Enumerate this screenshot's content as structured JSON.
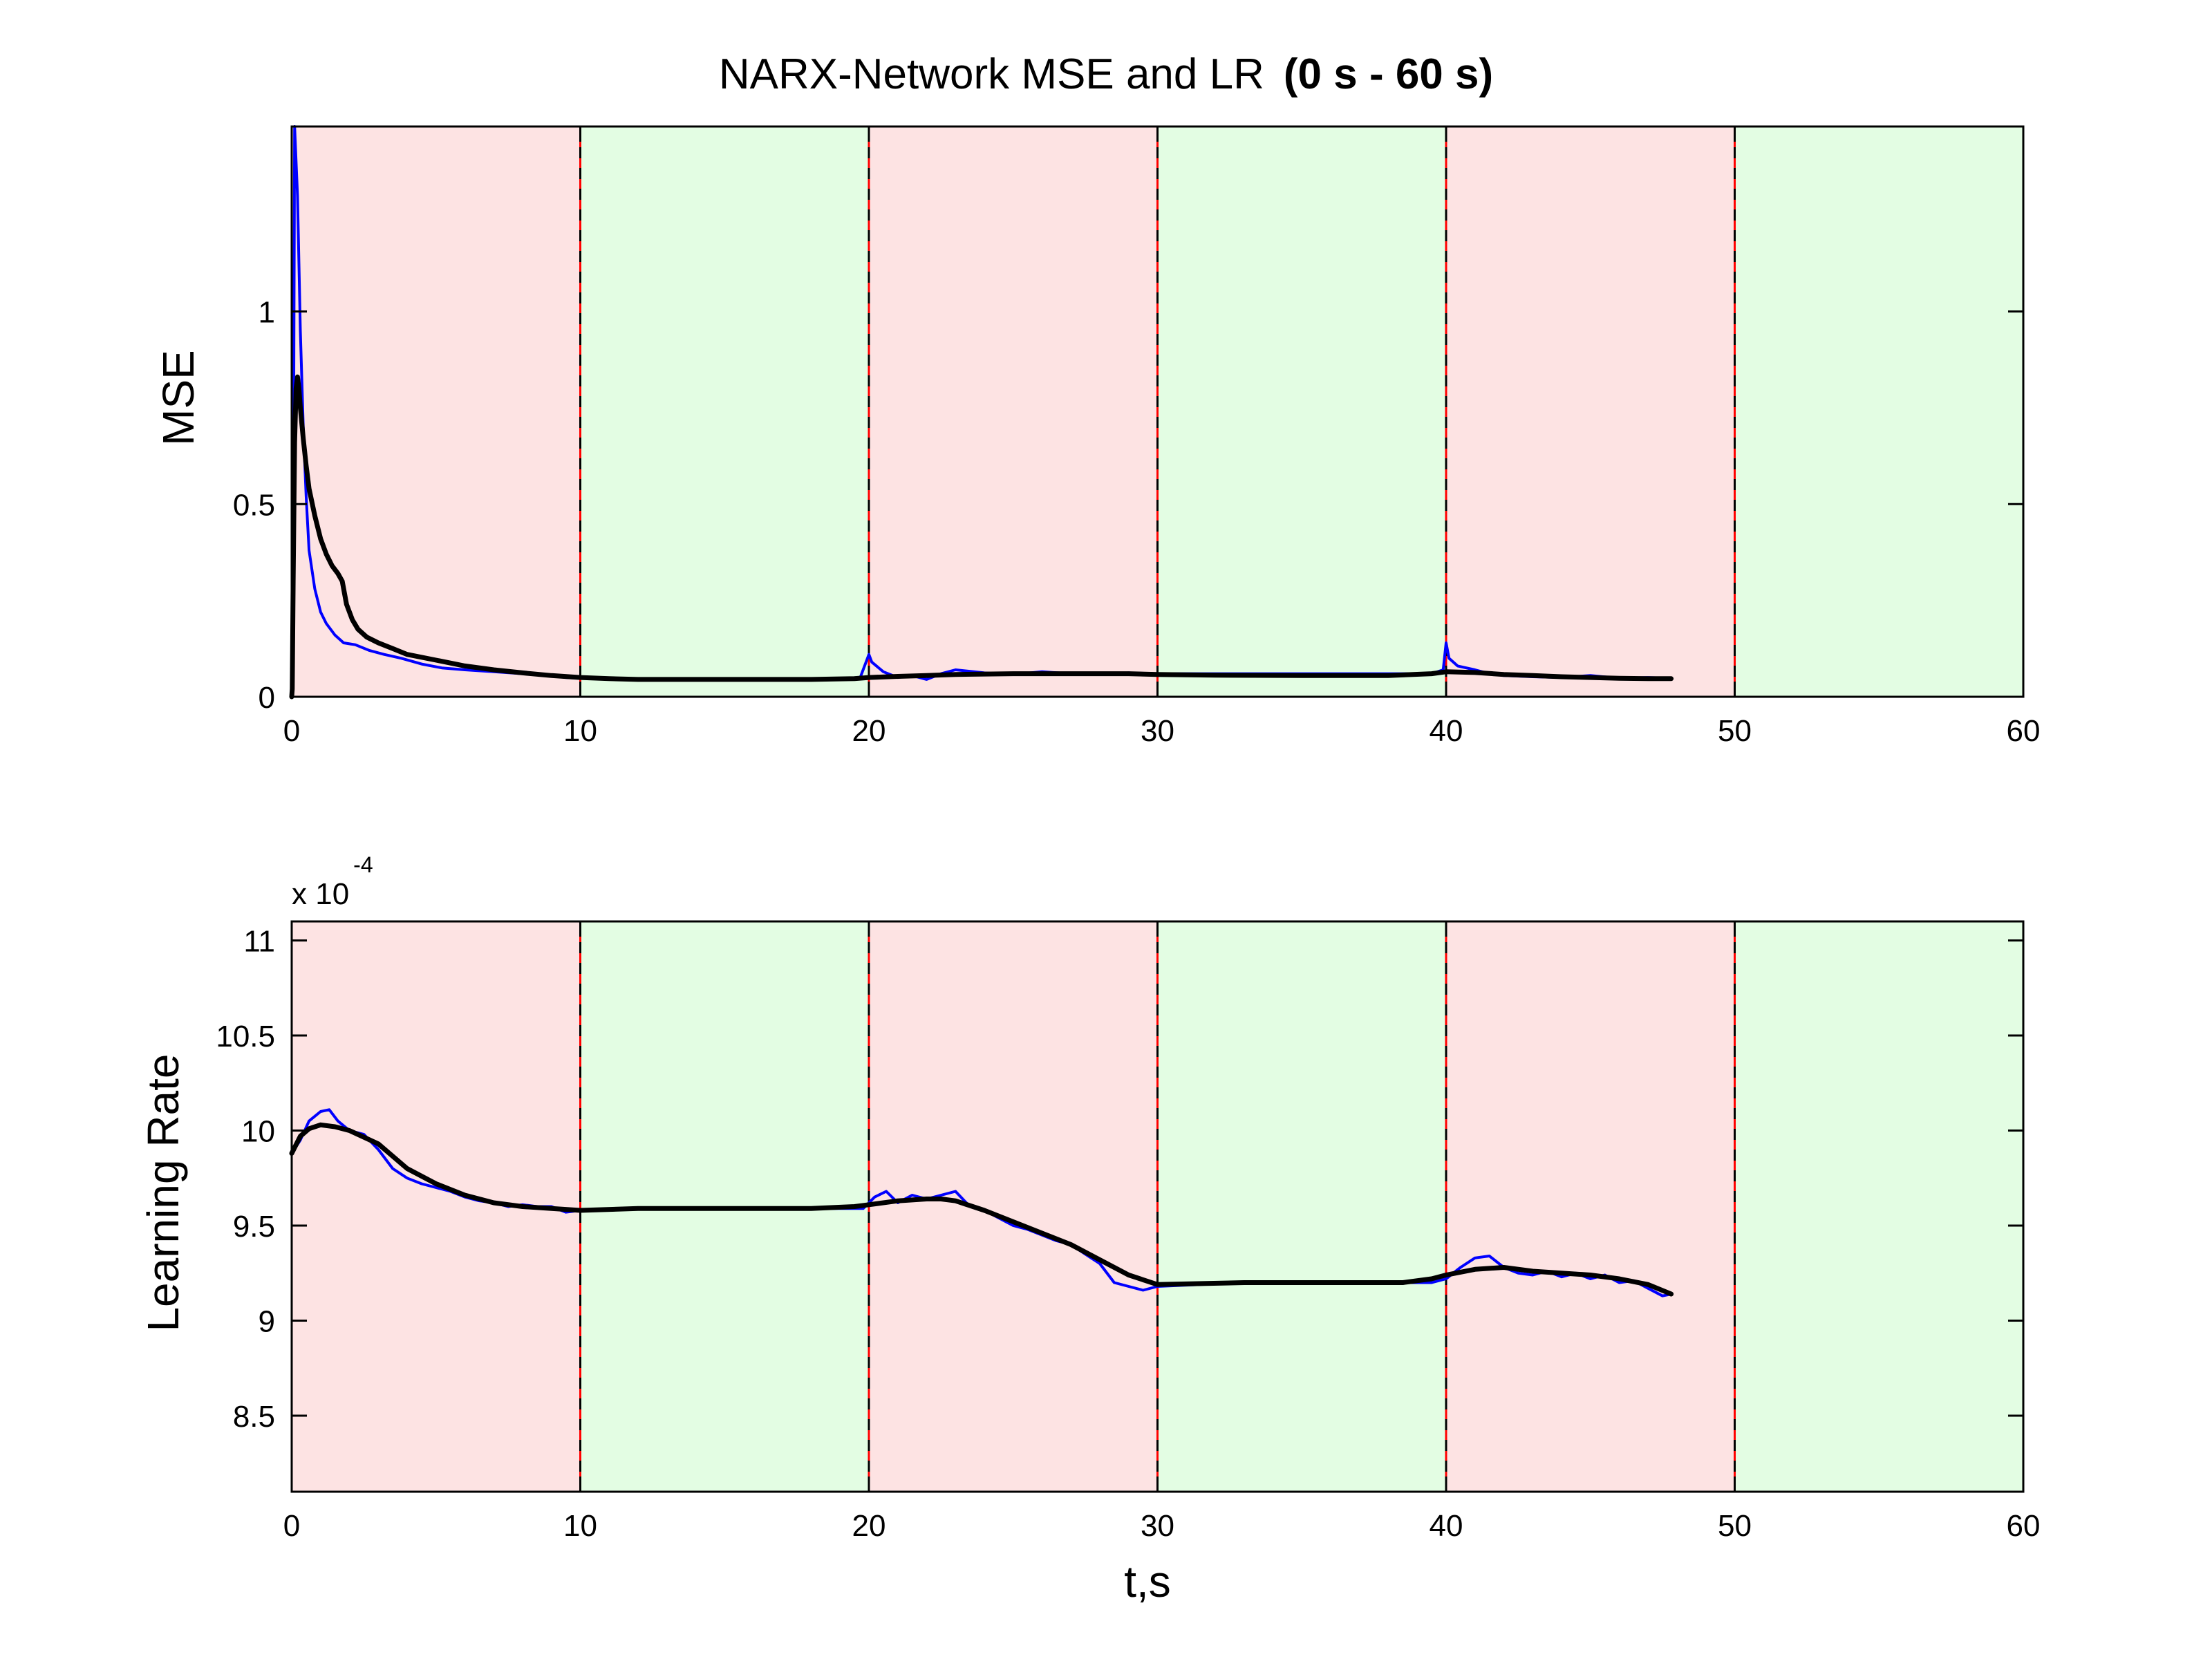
{
  "title": {
    "main": "NARX-Network MSE and LR",
    "bold": "(0 s - 60 s)"
  },
  "colors": {
    "red_band": "#fde3e3",
    "green_band": "#e3fde3",
    "raw_series": "#0000ff",
    "smoothed_series": "#000000",
    "boundary_red": "#ff0000",
    "boundary_black": "#000000"
  },
  "chart_data": [
    {
      "type": "line",
      "ylabel": "MSE",
      "xlabel": "",
      "xlim": [
        0,
        60
      ],
      "ylim": [
        0,
        1.48
      ],
      "xticks": [
        0,
        10,
        20,
        30,
        40,
        50,
        60
      ],
      "yticks": [
        0,
        0.5,
        1
      ],
      "xtick_labels": [
        "0",
        "10",
        "20",
        "30",
        "40",
        "50",
        "60"
      ],
      "ytick_labels": [
        "0",
        "0.5",
        "1"
      ],
      "bands": [
        {
          "x0": 0,
          "x1": 10,
          "color": "red"
        },
        {
          "x0": 10,
          "x1": 20,
          "color": "green"
        },
        {
          "x0": 20,
          "x1": 30,
          "color": "red"
        },
        {
          "x0": 30,
          "x1": 40,
          "color": "green"
        },
        {
          "x0": 40,
          "x1": 50,
          "color": "red"
        },
        {
          "x0": 50,
          "x1": 60,
          "color": "green"
        }
      ],
      "boundaries": [
        0,
        10,
        20,
        30,
        40,
        50,
        60
      ],
      "series": [
        {
          "role": "raw",
          "color": "blue",
          "x": [
            0,
            0.05,
            0.1,
            0.2,
            0.3,
            0.4,
            0.5,
            0.6,
            0.8,
            1.0,
            1.2,
            1.5,
            1.8,
            2.2,
            2.7,
            3.2,
            3.8,
            4.5,
            5.2,
            6.0,
            7.0,
            8.0,
            9.0,
            9.5,
            10.0,
            12,
            15,
            18,
            19.7,
            20.0,
            20.1,
            20.5,
            21,
            21.5,
            22,
            22.5,
            23,
            24,
            25,
            26,
            27,
            28,
            29,
            30,
            35,
            39.5,
            39.9,
            40.0,
            40.1,
            40.4,
            41,
            41.5,
            42,
            43,
            44,
            45,
            46,
            47,
            47.8
          ],
          "y": [
            0,
            0.3,
            1.48,
            1.3,
            0.95,
            0.7,
            0.52,
            0.38,
            0.28,
            0.22,
            0.19,
            0.16,
            0.14,
            0.135,
            0.12,
            0.11,
            0.1,
            0.085,
            0.075,
            0.07,
            0.065,
            0.06,
            0.055,
            0.05,
            0.048,
            0.045,
            0.045,
            0.045,
            0.05,
            0.11,
            0.09,
            0.065,
            0.05,
            0.055,
            0.045,
            0.06,
            0.07,
            0.062,
            0.058,
            0.065,
            0.06,
            0.058,
            0.062,
            0.06,
            0.06,
            0.06,
            0.07,
            0.14,
            0.1,
            0.08,
            0.07,
            0.06,
            0.055,
            0.052,
            0.05,
            0.055,
            0.048,
            0.05,
            0.048
          ]
        },
        {
          "role": "smoothed",
          "color": "black",
          "x": [
            0,
            0.02,
            0.05,
            0.1,
            0.15,
            0.2,
            0.25,
            0.3,
            0.4,
            0.5,
            0.6,
            0.8,
            1.0,
            1.2,
            1.4,
            1.6,
            1.75,
            1.9,
            2.1,
            2.3,
            2.6,
            3.0,
            3.5,
            4.0,
            5.0,
            6.0,
            7.0,
            8.0,
            9.0,
            10.0,
            11,
            12,
            14,
            16,
            18,
            19.5,
            20,
            21,
            22,
            23,
            25,
            27,
            29,
            30,
            32,
            35,
            38,
            39.5,
            40,
            41,
            42,
            43,
            44,
            45,
            46,
            47,
            47.8
          ],
          "y": [
            0,
            0.02,
            0.3,
            0.66,
            0.8,
            0.83,
            0.8,
            0.75,
            0.67,
            0.6,
            0.54,
            0.47,
            0.41,
            0.37,
            0.34,
            0.32,
            0.3,
            0.24,
            0.2,
            0.175,
            0.155,
            0.14,
            0.125,
            0.11,
            0.095,
            0.08,
            0.07,
            0.062,
            0.055,
            0.05,
            0.047,
            0.045,
            0.045,
            0.045,
            0.045,
            0.047,
            0.05,
            0.053,
            0.055,
            0.058,
            0.06,
            0.06,
            0.06,
            0.058,
            0.056,
            0.055,
            0.055,
            0.06,
            0.065,
            0.063,
            0.058,
            0.055,
            0.052,
            0.05,
            0.048,
            0.047,
            0.047
          ]
        }
      ]
    },
    {
      "type": "line",
      "ylabel": "Learning Rate",
      "xlabel": "t,s",
      "xlim": [
        0,
        60
      ],
      "ylim": [
        8.1,
        11.1
      ],
      "y_multiplier": "x 10",
      "y_multiplier_exp": "-4",
      "xticks": [
        0,
        10,
        20,
        30,
        40,
        50,
        60
      ],
      "yticks": [
        8.5,
        9,
        9.5,
        10,
        10.5,
        11
      ],
      "xtick_labels": [
        "0",
        "10",
        "20",
        "30",
        "40",
        "50",
        "60"
      ],
      "ytick_labels": [
        "8.5",
        "9",
        "9.5",
        "10",
        "10.5",
        "11"
      ],
      "bands": [
        {
          "x0": 0,
          "x1": 10,
          "color": "red"
        },
        {
          "x0": 10,
          "x1": 20,
          "color": "green"
        },
        {
          "x0": 20,
          "x1": 30,
          "color": "red"
        },
        {
          "x0": 30,
          "x1": 40,
          "color": "green"
        },
        {
          "x0": 40,
          "x1": 50,
          "color": "red"
        },
        {
          "x0": 50,
          "x1": 60,
          "color": "green"
        }
      ],
      "boundaries": [
        0,
        10,
        20,
        30,
        40,
        50,
        60
      ],
      "series": [
        {
          "role": "raw",
          "color": "blue",
          "x": [
            0,
            0.3,
            0.6,
            1.0,
            1.3,
            1.6,
            2.0,
            2.5,
            3.0,
            3.5,
            4.0,
            4.5,
            5.0,
            5.5,
            6.0,
            6.5,
            7.0,
            7.5,
            8.0,
            8.5,
            9.0,
            9.5,
            10.0,
            12,
            15,
            18,
            19.8,
            20.2,
            20.6,
            21.0,
            21.5,
            22.0,
            22.5,
            23.0,
            23.5,
            24.0,
            24.5,
            25.0,
            25.5,
            26.0,
            26.5,
            27.0,
            27.5,
            28.0,
            28.5,
            29.0,
            29.5,
            30.0,
            33,
            36,
            39.5,
            40.0,
            40.5,
            41.0,
            41.5,
            42.0,
            42.5,
            43.0,
            43.5,
            44.0,
            44.5,
            45.0,
            45.5,
            46.0,
            46.5,
            47.0,
            47.5,
            47.8
          ],
          "y": [
            9.88,
            9.95,
            10.05,
            10.1,
            10.11,
            10.05,
            10.0,
            9.98,
            9.9,
            9.8,
            9.75,
            9.72,
            9.7,
            9.68,
            9.65,
            9.63,
            9.62,
            9.6,
            9.61,
            9.6,
            9.6,
            9.57,
            9.58,
            9.59,
            9.59,
            9.59,
            9.59,
            9.65,
            9.68,
            9.62,
            9.66,
            9.64,
            9.66,
            9.68,
            9.6,
            9.58,
            9.54,
            9.5,
            9.48,
            9.45,
            9.42,
            9.4,
            9.35,
            9.3,
            9.2,
            9.18,
            9.16,
            9.18,
            9.2,
            9.2,
            9.2,
            9.22,
            9.28,
            9.33,
            9.34,
            9.28,
            9.25,
            9.24,
            9.26,
            9.23,
            9.25,
            9.22,
            9.24,
            9.2,
            9.21,
            9.17,
            9.13,
            9.14
          ]
        },
        {
          "role": "smoothed",
          "color": "black",
          "x": [
            0,
            0.3,
            0.6,
            1.0,
            1.5,
            2.0,
            3.0,
            4.0,
            5.0,
            6.0,
            7.0,
            8.0,
            9.0,
            10.0,
            12,
            15,
            18,
            19.5,
            20.0,
            21.0,
            22.0,
            22.5,
            23.0,
            24.0,
            25.0,
            26.0,
            27.0,
            28.0,
            29.0,
            30.0,
            33,
            36,
            38.5,
            39.5,
            40.0,
            41.0,
            42.0,
            43.0,
            44.0,
            45.0,
            46.0,
            47.0,
            47.8
          ],
          "y": [
            9.88,
            9.97,
            10.01,
            10.03,
            10.02,
            10.0,
            9.93,
            9.8,
            9.72,
            9.66,
            9.62,
            9.6,
            9.59,
            9.58,
            9.59,
            9.59,
            9.59,
            9.6,
            9.61,
            9.63,
            9.64,
            9.64,
            9.63,
            9.58,
            9.52,
            9.46,
            9.4,
            9.32,
            9.24,
            9.19,
            9.2,
            9.2,
            9.2,
            9.22,
            9.24,
            9.27,
            9.28,
            9.26,
            9.25,
            9.24,
            9.22,
            9.19,
            9.14
          ]
        }
      ]
    }
  ]
}
